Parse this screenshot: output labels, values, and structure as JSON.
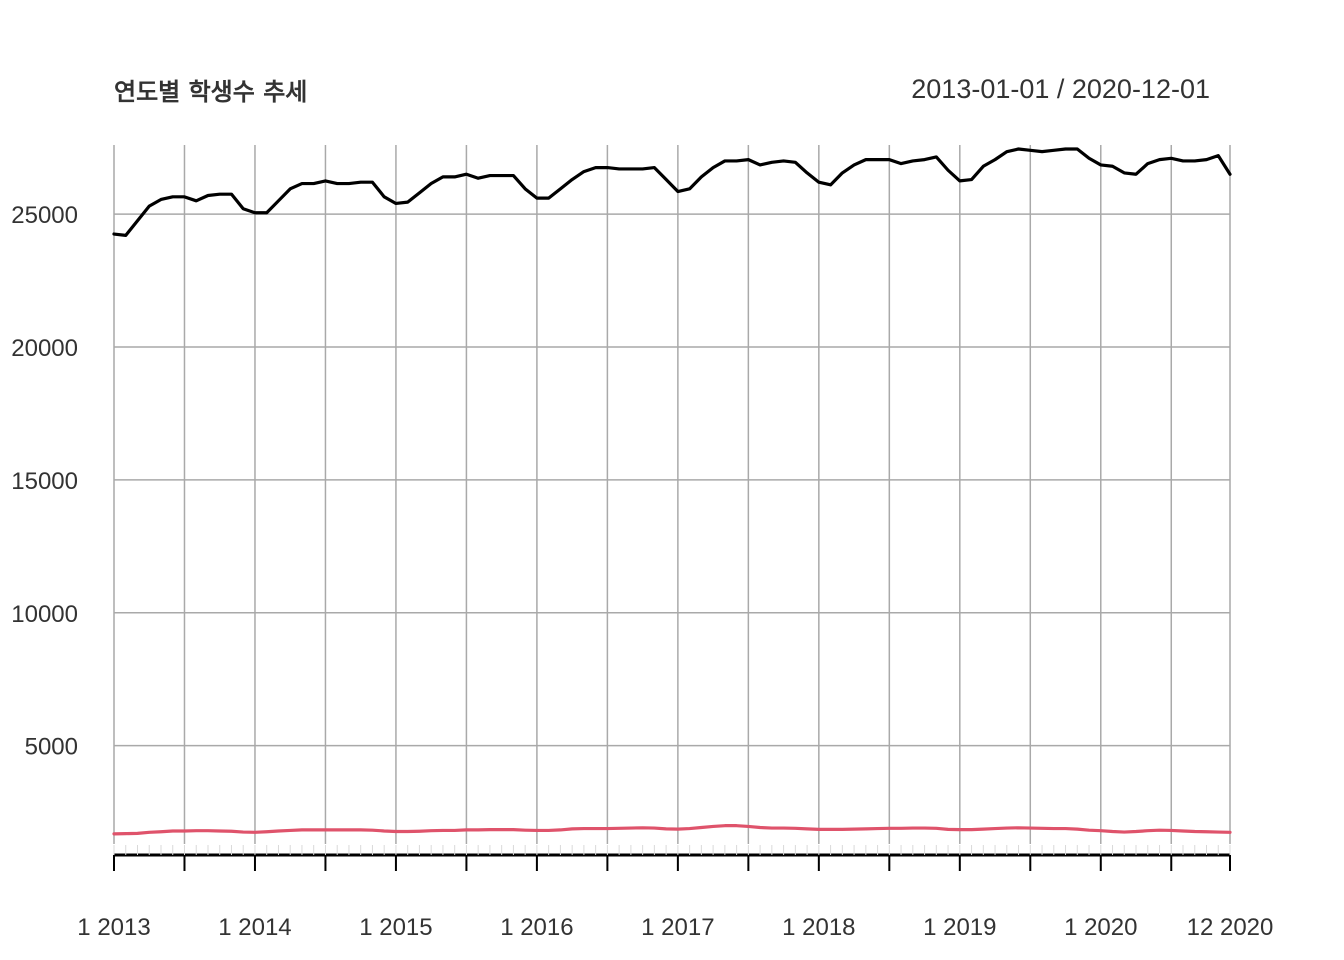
{
  "header": {
    "title": "연도별 학생수 추세",
    "date_range": "2013-01-01 / 2020-12-01"
  },
  "colors": {
    "series_1": "#000000",
    "series_2": "#DF536B",
    "grid": "#A9A9A9",
    "text": "#333333"
  },
  "chart_data": {
    "type": "line",
    "title": "연도별 학생수 추세",
    "subtitle": "2013-01-01 / 2020-12-01",
    "xlabel": "",
    "ylabel": "",
    "x_start": "2013-01",
    "x_end": "2020-12",
    "x_tick_labels": [
      "1 2013",
      "1 2014",
      "1 2015",
      "1 2016",
      "1 2017",
      "1 2018",
      "1 2019",
      "1 2020",
      "12 2020"
    ],
    "y_ticks": [
      5000,
      10000,
      15000,
      20000,
      25000
    ],
    "ylim": [
      1300,
      27600
    ],
    "grid": true,
    "series": [
      {
        "color": "#000000",
        "values": [
          24250,
          24200,
          24750,
          25300,
          25550,
          25650,
          25650,
          25500,
          25700,
          25750,
          25750,
          25200,
          25050,
          25050,
          25500,
          25950,
          26150,
          26150,
          26250,
          26150,
          26150,
          26200,
          26200,
          25650,
          25400,
          25450,
          25800,
          26150,
          26400,
          26400,
          26500,
          26350,
          26450,
          26450,
          26450,
          25950,
          25600,
          25600,
          25950,
          26300,
          26600,
          26750,
          26750,
          26700,
          26700,
          26700,
          26750,
          26300,
          25850,
          25950,
          26400,
          26750,
          27000,
          27000,
          27050,
          26850,
          26950,
          27000,
          26950,
          26550,
          26200,
          26100,
          26550,
          26850,
          27050,
          27050,
          27050,
          26900,
          27000,
          27050,
          27150,
          26650,
          26250,
          26300,
          26800,
          27050,
          27350,
          27450,
          27400,
          27350,
          27400,
          27450,
          27450,
          27100,
          26850,
          26800,
          26550,
          26500,
          26900,
          27050,
          27100,
          27000,
          27000,
          27050,
          27200,
          26500
        ]
      },
      {
        "color": "#DF536B",
        "values": [
          1680,
          1690,
          1700,
          1740,
          1760,
          1790,
          1790,
          1800,
          1800,
          1790,
          1780,
          1750,
          1740,
          1760,
          1790,
          1810,
          1830,
          1830,
          1830,
          1830,
          1830,
          1830,
          1820,
          1790,
          1770,
          1770,
          1780,
          1800,
          1810,
          1810,
          1830,
          1830,
          1840,
          1840,
          1840,
          1820,
          1810,
          1810,
          1830,
          1870,
          1880,
          1880,
          1880,
          1890,
          1900,
          1910,
          1900,
          1870,
          1860,
          1880,
          1920,
          1960,
          1990,
          1990,
          1960,
          1920,
          1900,
          1900,
          1890,
          1870,
          1850,
          1850,
          1850,
          1860,
          1870,
          1880,
          1890,
          1890,
          1900,
          1900,
          1890,
          1850,
          1840,
          1840,
          1860,
          1880,
          1900,
          1910,
          1900,
          1890,
          1880,
          1880,
          1860,
          1820,
          1800,
          1770,
          1750,
          1770,
          1800,
          1820,
          1810,
          1790,
          1770,
          1760,
          1750,
          1740
        ]
      }
    ]
  }
}
